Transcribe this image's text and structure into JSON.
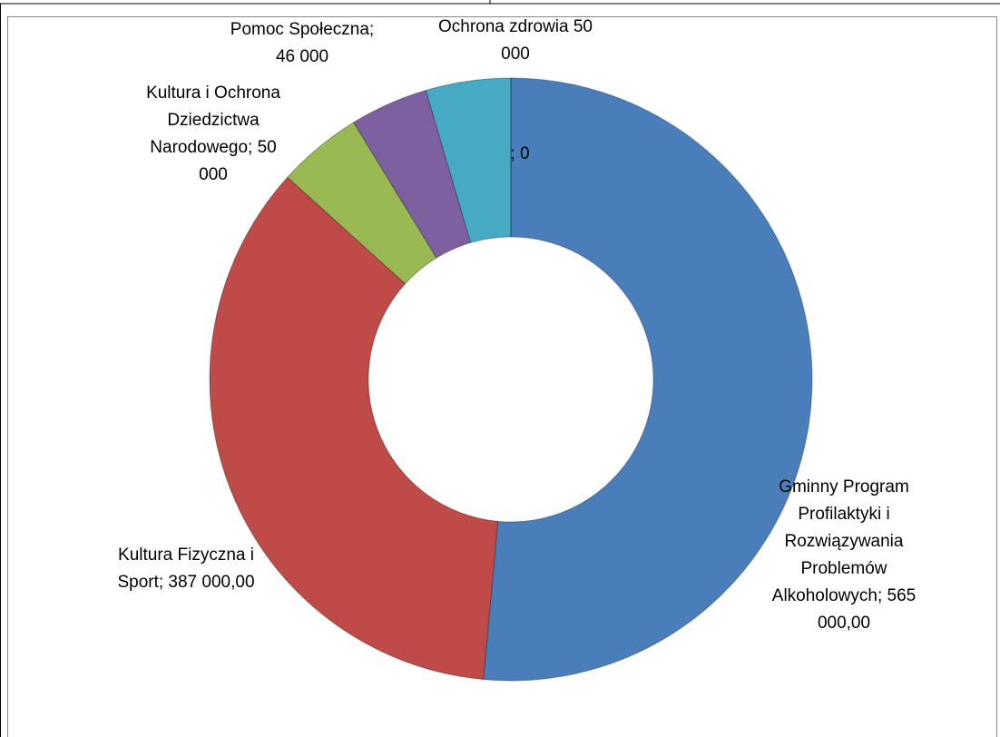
{
  "chart_data": {
    "type": "pie",
    "donut": true,
    "values": [
      565000,
      387000,
      50000,
      46000,
      50000,
      0
    ],
    "value_labels": [
      "Gminny Program Profilaktyki i Rozwiązywania Problemów Alkoholowych; 565 000,00",
      "Kultura Fizyczna i Sport; 387 000,00",
      "Kultura i Ochrona Dziedzictwa Narodowego; 50 000",
      "Pomoc Społeczna; 46 000",
      "Ochrona zdrowia 50 000",
      "; 0"
    ],
    "colors": [
      "#4a7ebb",
      "#be4b48",
      "#98b954",
      "#7d60a0",
      "#46aac5",
      "#f79646"
    ]
  }
}
